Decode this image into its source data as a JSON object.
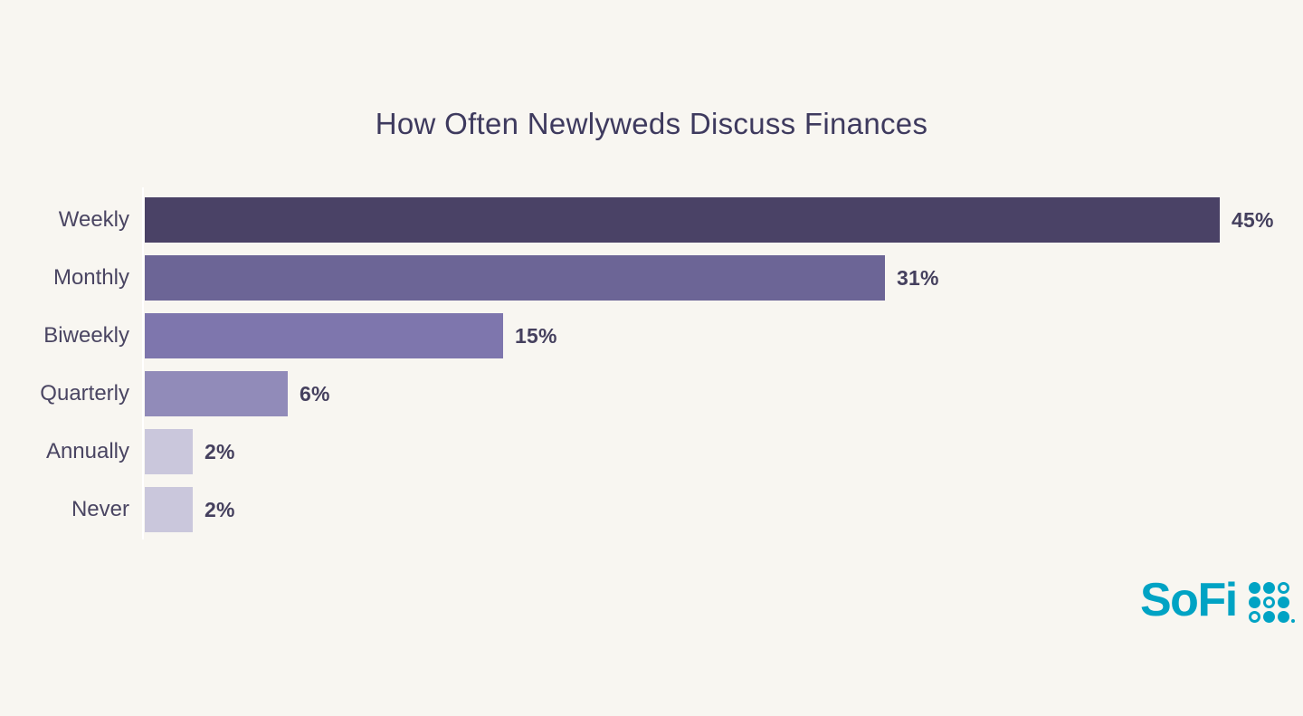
{
  "chart_data": {
    "type": "bar",
    "orientation": "horizontal",
    "title": "How Often Newlyweds Discuss Finances",
    "categories": [
      "Weekly",
      "Monthly",
      "Biweekly",
      "Quarterly",
      "Annually",
      "Never"
    ],
    "values": [
      45,
      31,
      15,
      6,
      2,
      2
    ],
    "value_labels": [
      "45%",
      "31%",
      "15%",
      "6%",
      "2%",
      "2%"
    ],
    "xlim": [
      0,
      45
    ],
    "bar_colors": [
      "#4a4266",
      "#6c6596",
      "#7e76ad",
      "#918bb9",
      "#cac7dc",
      "#cac7dc"
    ],
    "grid": false,
    "legend": false,
    "xlabel": "",
    "ylabel": ""
  },
  "branding": {
    "logo_text": "SoFi",
    "logo_color": "#00a3c4",
    "grid_pattern": [
      [
        1,
        1,
        0
      ],
      [
        1,
        0,
        1
      ],
      [
        0,
        1,
        1
      ]
    ]
  },
  "colors": {
    "background": "#f8f6f1",
    "title": "#3e3a5e",
    "category_label": "#4a4562",
    "value_label": "#45405e",
    "axis_line": "#ffffff"
  }
}
